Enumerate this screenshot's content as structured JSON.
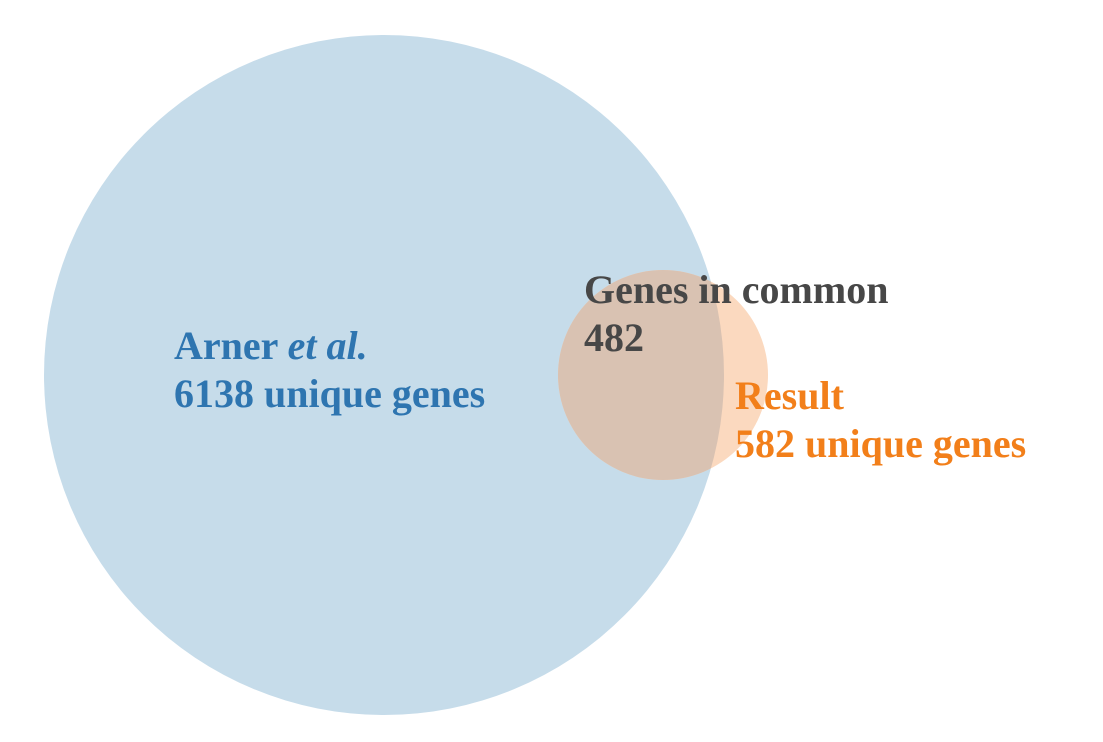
{
  "venn": {
    "set_a": {
      "name": "Arner",
      "name_suffix": "et al.",
      "unique_text": "6138 unique genes",
      "color": "#c6dcea",
      "text_color": "#2e75b0"
    },
    "set_b": {
      "name": "Result",
      "unique_text": "582 unique genes",
      "color": "#fbd9bf",
      "text_color": "#f27f1a"
    },
    "intersection": {
      "label": "Genes in common",
      "count": "482",
      "color": "#d9c2b2",
      "text_color": "#474747"
    }
  }
}
